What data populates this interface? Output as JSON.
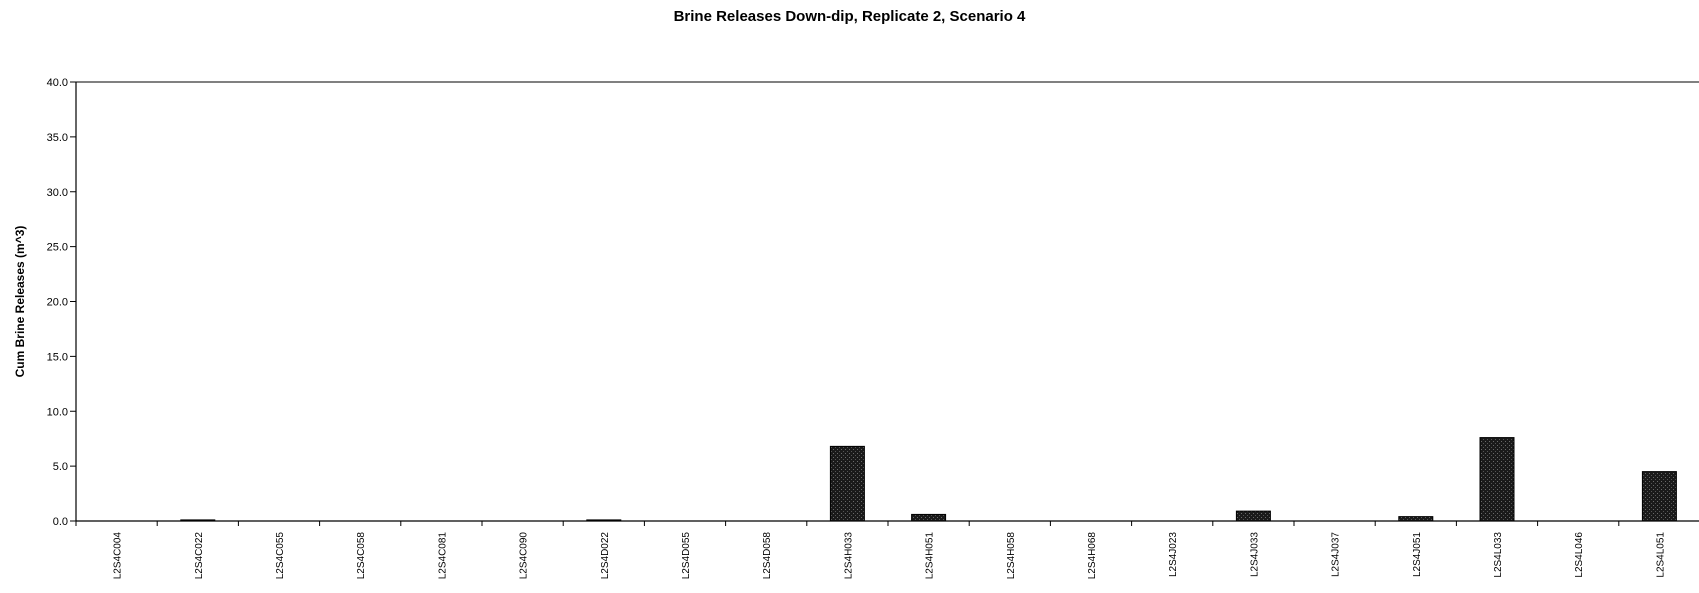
{
  "chart_data": {
    "type": "bar",
    "title": "Brine Releases Down-dip, Replicate 2, Scenario 4",
    "xlabel": "",
    "ylabel": "Cum Brine Releases (m^3)",
    "ylim": [
      0,
      40
    ],
    "yticks": [
      "0.0",
      "5.0",
      "10.0",
      "15.0",
      "20.0",
      "25.0",
      "30.0",
      "35.0",
      "40.0"
    ],
    "grid": false,
    "categories": [
      "L2S4C004",
      "L2S4C022",
      "L2S4C055",
      "L2S4C058",
      "L2S4C081",
      "L2S4C090",
      "L2S4D022",
      "L2S4D055",
      "L2S4D058",
      "L2S4H033",
      "L2S4H051",
      "L2S4H058",
      "L2S4H068",
      "L2S4J023",
      "L2S4J033",
      "L2S4J037",
      "L2S4J051",
      "L2S4L033",
      "L2S4L046",
      "L2S4L051"
    ],
    "values": [
      0.0,
      0.1,
      0.0,
      0.0,
      0.0,
      0.0,
      0.1,
      0.0,
      0.0,
      6.8,
      0.6,
      0.0,
      0.0,
      0.0,
      0.9,
      0.0,
      0.4,
      7.6,
      0.0,
      4.5
    ],
    "bar_color": "#222222"
  }
}
